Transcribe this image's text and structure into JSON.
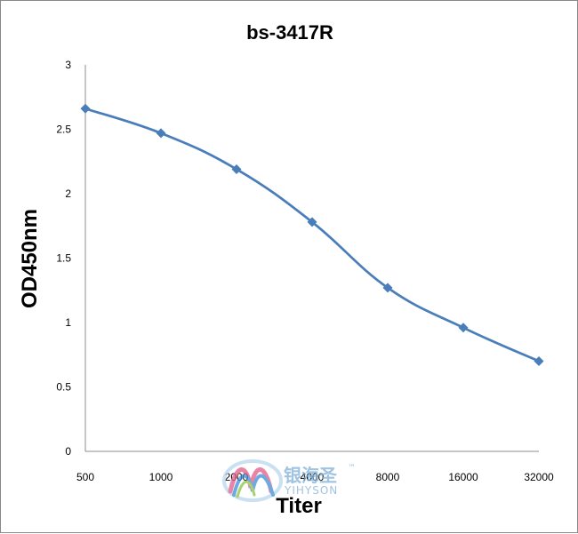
{
  "chart_data": {
    "type": "line",
    "title": "bs-3417R",
    "xlabel": "Titer",
    "ylabel": "OD450nm",
    "categories": [
      "500",
      "1000",
      "2000",
      "4000",
      "8000",
      "16000",
      "32000"
    ],
    "series": [
      {
        "values": [
          2.66,
          2.47,
          2.19,
          1.78,
          1.27,
          0.96,
          0.7
        ]
      }
    ],
    "ylim": [
      0,
      3
    ],
    "yticks": [
      "0",
      "0.5",
      "1",
      "1.5",
      "2",
      "2.5",
      "3"
    ],
    "grid": false,
    "legend": "none",
    "colors": {
      "line": "#4a7ebb",
      "marker": "#4a7ebb",
      "axis": "#8c8c8c"
    }
  },
  "watermark": {
    "cn": "银海圣",
    "en": "YIHYSON",
    "tm": "™"
  }
}
